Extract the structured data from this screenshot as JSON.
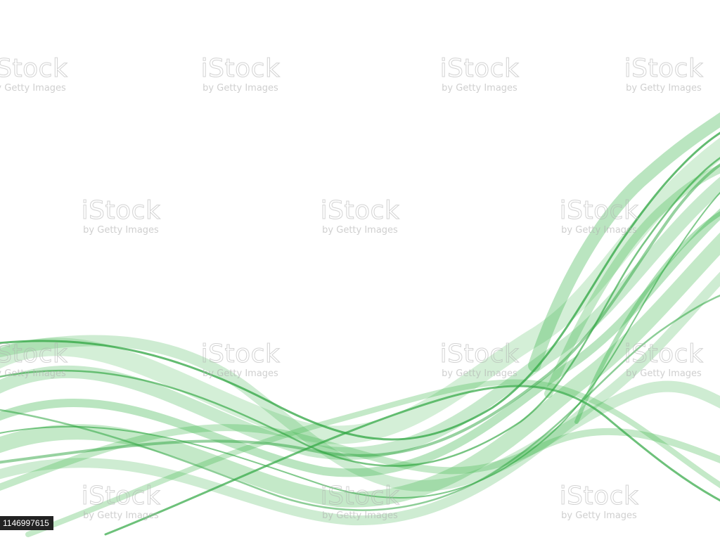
{
  "image": {
    "description_free": true,
    "background_color": "#ffffff",
    "accent_color": "#3ab54a"
  },
  "watermark": {
    "brand": "iStock",
    "credit": "by Getty Images",
    "trademark": "™"
  },
  "image_id": "1146997615"
}
